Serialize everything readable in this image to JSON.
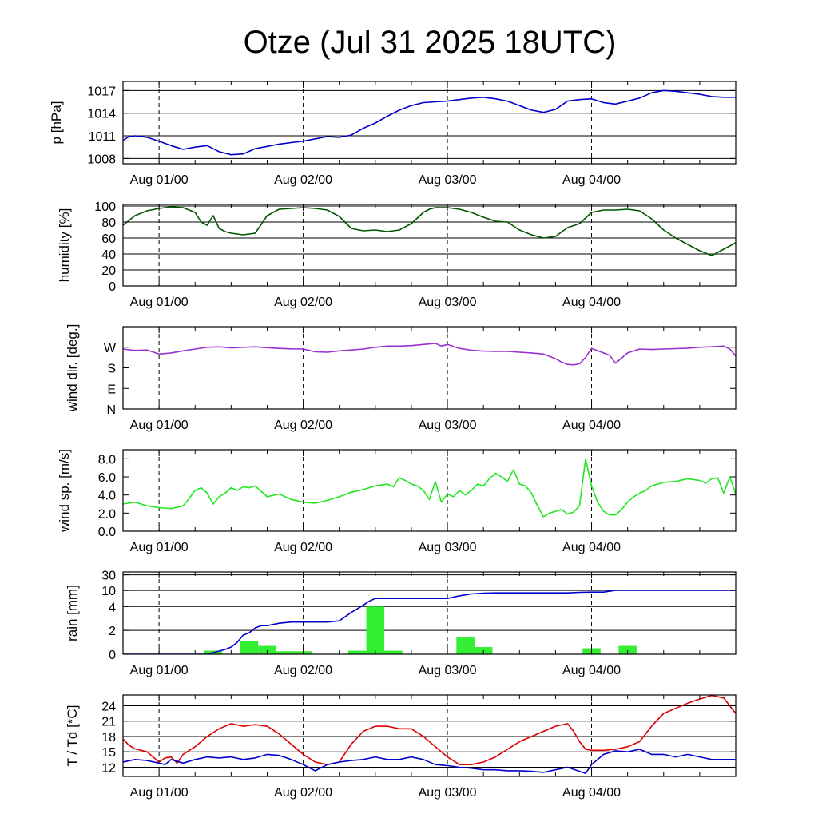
{
  "title": "Otze (Jul 31 2025 18UTC)",
  "colors": {
    "pressure": "#0000cc",
    "humidity": "#005500",
    "wind_dir": "#9a30cf",
    "wind_speed": "#22e822",
    "rain_bar": "#33ee33",
    "rain_total": "#0000cc",
    "temperature": "#dd0000",
    "dewpoint": "#0000cc",
    "grid": "#000000"
  },
  "chart_data": [
    {
      "type": "line",
      "ylabel": "p [hPa]",
      "x_range": [
        -6,
        96
      ],
      "x_tick_labels": [
        "Aug 01/00",
        "Aug 02/00",
        "Aug 03/00",
        "Aug 04/00"
      ],
      "x_tick_hours": [
        0,
        24,
        48,
        72
      ],
      "ylim": [
        1007.3,
        1018.2
      ],
      "y_ticks": [
        1008,
        1011,
        1014,
        1017
      ],
      "y_tick_labels": [
        "1008",
        "1011",
        "1014",
        "1017"
      ],
      "grid": true,
      "series": [
        {
          "color_key": "pressure",
          "x": [
            -6,
            -5,
            -4,
            -2,
            0,
            2,
            4,
            6,
            8,
            10,
            12,
            14,
            16,
            18,
            20,
            22,
            24,
            26,
            28,
            30,
            32,
            34,
            36,
            38,
            40,
            42,
            44,
            46,
            48,
            50,
            52,
            54,
            56,
            58,
            60,
            62,
            64,
            66,
            68,
            70,
            72,
            74,
            76,
            78,
            80,
            82,
            84,
            86,
            88,
            90,
            92,
            94,
            96
          ],
          "y": [
            1010.4,
            1010.9,
            1011.0,
            1010.8,
            1010.3,
            1009.7,
            1009.2,
            1009.5,
            1009.7,
            1008.9,
            1008.5,
            1008.6,
            1009.3,
            1009.6,
            1009.9,
            1010.1,
            1010.3,
            1010.6,
            1010.9,
            1010.8,
            1011.1,
            1012.0,
            1012.7,
            1013.6,
            1014.4,
            1015.0,
            1015.4,
            1015.5,
            1015.6,
            1015.8,
            1016.0,
            1016.1,
            1015.9,
            1015.6,
            1015.0,
            1014.4,
            1014.1,
            1014.5,
            1015.6,
            1015.8,
            1015.9,
            1015.4,
            1015.2,
            1015.6,
            1016.0,
            1016.7,
            1017.0,
            1016.9,
            1016.7,
            1016.5,
            1016.2,
            1016.1,
            1016.1
          ]
        }
      ]
    },
    {
      "type": "line",
      "ylabel": "humidity [%]",
      "x_range": [
        -6,
        96
      ],
      "x_tick_labels": [
        "Aug 01/00",
        "Aug 02/00",
        "Aug 03/00",
        "Aug 04/00"
      ],
      "x_tick_hours": [
        0,
        24,
        48,
        72
      ],
      "ylim": [
        0,
        102
      ],
      "y_ticks": [
        0,
        20,
        40,
        60,
        80,
        100
      ],
      "y_tick_labels": [
        "0",
        "20",
        "40",
        "60",
        "80",
        "100"
      ],
      "grid": true,
      "series": [
        {
          "color_key": "humidity",
          "x": [
            -6,
            -4,
            -2,
            0,
            2,
            4,
            6,
            7,
            8,
            9,
            10,
            11,
            12,
            14,
            16,
            18,
            20,
            22,
            24,
            26,
            28,
            30,
            32,
            34,
            36,
            38,
            40,
            42,
            44,
            45,
            46,
            48,
            50,
            52,
            54,
            56,
            58,
            60,
            62,
            64,
            66,
            68,
            70,
            72,
            74,
            76,
            78,
            80,
            82,
            84,
            86,
            88,
            90,
            92,
            94,
            96
          ],
          "y": [
            76,
            88,
            94,
            97,
            99,
            98,
            92,
            80,
            76,
            88,
            72,
            68,
            66,
            64,
            66,
            88,
            96,
            97,
            98,
            97,
            95,
            87,
            72,
            69,
            70,
            68,
            70,
            78,
            92,
            96,
            98,
            98,
            96,
            92,
            86,
            81,
            80,
            70,
            64,
            60,
            62,
            73,
            78,
            92,
            95,
            95,
            96,
            94,
            84,
            70,
            60,
            52,
            44,
            38,
            46,
            54
          ]
        }
      ]
    },
    {
      "type": "line",
      "ylabel": "wind dir. [deg.]",
      "x_range": [
        -6,
        96
      ],
      "x_tick_labels": [
        "Aug 01/00",
        "Aug 02/00",
        "Aug 03/00",
        "Aug 04/00"
      ],
      "x_tick_hours": [
        0,
        24,
        48,
        72
      ],
      "ylim": [
        0,
        360
      ],
      "y_ticks": [
        0,
        90,
        180,
        270
      ],
      "y_tick_labels": [
        "N",
        "E",
        "S",
        "W"
      ],
      "grid": false,
      "series": [
        {
          "color_key": "wind_dir",
          "x": [
            -6,
            -4,
            -2,
            0,
            2,
            4,
            6,
            8,
            10,
            12,
            14,
            16,
            18,
            20,
            22,
            24,
            26,
            28,
            30,
            32,
            34,
            36,
            38,
            40,
            42,
            44,
            46,
            47,
            48,
            50,
            52,
            54,
            56,
            58,
            60,
            62,
            64,
            66,
            67,
            68,
            69,
            70,
            71,
            72,
            74,
            75,
            76,
            78,
            80,
            82,
            84,
            86,
            88,
            90,
            92,
            94,
            95,
            96
          ],
          "y": [
            262,
            256,
            258,
            240,
            245,
            254,
            262,
            270,
            272,
            267,
            270,
            272,
            268,
            265,
            263,
            262,
            250,
            248,
            254,
            258,
            262,
            270,
            275,
            275,
            277,
            282,
            287,
            275,
            282,
            265,
            257,
            253,
            252,
            252,
            248,
            245,
            240,
            220,
            205,
            195,
            193,
            198,
            225,
            265,
            245,
            235,
            200,
            245,
            262,
            260,
            262,
            264,
            266,
            270,
            272,
            275,
            262,
            232
          ]
        }
      ]
    },
    {
      "type": "line",
      "ylabel": "wind sp. [m/s]",
      "x_range": [
        -6,
        96
      ],
      "x_tick_labels": [
        "Aug 01/00",
        "Aug 02/00",
        "Aug 03/00",
        "Aug 04/00"
      ],
      "x_tick_hours": [
        0,
        24,
        48,
        72
      ],
      "ylim": [
        0,
        9
      ],
      "y_ticks": [
        0,
        2,
        4,
        6,
        8
      ],
      "y_tick_labels": [
        "0.0",
        "2.0",
        "4.0",
        "6.0",
        "8.0"
      ],
      "grid": false,
      "series": [
        {
          "color_key": "wind_speed",
          "x": [
            -6,
            -4,
            -2,
            0,
            2,
            4,
            5,
            6,
            7,
            8,
            9,
            10,
            11,
            12,
            13,
            14,
            15,
            16,
            18,
            20,
            22,
            24,
            26,
            28,
            30,
            32,
            34,
            36,
            38,
            39,
            40,
            41,
            42,
            43,
            44,
            45,
            46,
            47,
            48,
            49,
            50,
            51,
            52,
            53,
            54,
            55,
            56,
            57,
            58,
            59,
            60,
            61,
            62,
            63,
            64,
            65,
            66,
            67,
            68,
            69,
            70,
            71,
            72,
            73,
            74,
            75,
            76,
            77,
            78,
            79,
            80,
            81,
            82,
            84,
            86,
            88,
            89,
            90,
            91,
            92,
            93,
            94,
            95,
            96
          ],
          "y": [
            3.0,
            3.2,
            2.8,
            2.6,
            2.5,
            2.8,
            3.6,
            4.5,
            4.8,
            4.2,
            3.0,
            3.8,
            4.2,
            4.8,
            4.5,
            4.9,
            4.8,
            5.0,
            3.8,
            4.1,
            3.5,
            3.2,
            3.1,
            3.4,
            3.8,
            4.3,
            4.6,
            5.0,
            5.2,
            4.9,
            5.9,
            5.6,
            5.2,
            5.0,
            4.5,
            3.5,
            5.5,
            3.2,
            4.1,
            3.8,
            4.5,
            4.0,
            4.5,
            5.2,
            5.0,
            5.8,
            6.4,
            6.0,
            5.5,
            6.8,
            5.2,
            5.0,
            4.2,
            2.8,
            1.6,
            2.0,
            2.2,
            2.4,
            1.9,
            2.1,
            2.8,
            8.0,
            5.0,
            3.2,
            2.2,
            1.8,
            1.8,
            2.4,
            3.2,
            3.8,
            4.2,
            4.5,
            5.0,
            5.4,
            5.5,
            5.8,
            5.7,
            5.6,
            5.3,
            5.8,
            5.9,
            4.2,
            6.0,
            4.1
          ]
        }
      ]
    },
    {
      "type": "bar",
      "ylabel": "rain [mm]",
      "x_range": [
        -6,
        96
      ],
      "x_tick_labels": [
        "Aug 01/00",
        "Aug 02/00",
        "Aug 03/00",
        "Aug 04/00"
      ],
      "x_tick_hours": [
        0,
        24,
        48,
        72
      ],
      "y_scale": "nonlinear",
      "y_ticks": [
        0,
        2,
        4,
        10,
        30
      ],
      "y_tick_labels": [
        "0",
        "2",
        "4",
        "10",
        "30"
      ],
      "grid": true,
      "bars": {
        "color_key": "rain_bar",
        "start_hour": [
          7.5,
          13.5,
          16.5,
          19.5,
          22.5,
          31.5,
          34.5,
          37.5,
          49.5,
          52.5,
          70.5,
          76.5
        ],
        "end_hour": [
          10.5,
          16.5,
          19.5,
          22.5,
          25.5,
          34.5,
          37.5,
          40.5,
          52.5,
          55.5,
          73.5,
          79.5
        ],
        "values": [
          0.3,
          1.1,
          0.7,
          0.25,
          0.25,
          0.3,
          4.0,
          0.3,
          1.4,
          0.6,
          0.5,
          0.7
        ]
      },
      "series": [
        {
          "name_key": "accumulated",
          "color_key": "rain_total",
          "x": [
            -6,
            8,
            11,
            12,
            13,
            14,
            15,
            16,
            17,
            18,
            20,
            22,
            24,
            26,
            28,
            30,
            32,
            34,
            35,
            36,
            38,
            40,
            42,
            44,
            46,
            48,
            50,
            52,
            54,
            56,
            58,
            60,
            62,
            64,
            66,
            68,
            70,
            72,
            74,
            76,
            78,
            80,
            84,
            88,
            92,
            96
          ],
          "y": [
            0,
            0,
            0.4,
            0.6,
            1.0,
            1.6,
            1.8,
            2.2,
            2.4,
            2.4,
            2.6,
            2.7,
            2.7,
            2.7,
            2.7,
            2.8,
            3.5,
            4.5,
            6.0,
            7.0,
            7.0,
            7.0,
            7.0,
            7.0,
            7.0,
            7.0,
            8.0,
            8.7,
            9.0,
            9.1,
            9.1,
            9.1,
            9.1,
            9.1,
            9.1,
            9.1,
            9.3,
            9.4,
            9.4,
            10.2,
            10.3,
            10.3,
            10.3,
            10.3,
            10.3,
            10.3
          ]
        }
      ]
    },
    {
      "type": "line",
      "ylabel": "T / Td [*C]",
      "x_range": [
        -6,
        96
      ],
      "x_tick_labels": [
        "Aug 01/00",
        "Aug 02/00",
        "Aug 03/00",
        "Aug 04/00"
      ],
      "x_tick_hours": [
        0,
        24,
        48,
        72
      ],
      "ylim": [
        10.2,
        26.1
      ],
      "y_ticks": [
        12,
        15,
        18,
        21,
        24
      ],
      "y_tick_labels": [
        "12",
        "15",
        "18",
        "21",
        "24"
      ],
      "grid": true,
      "series": [
        {
          "name_key": "T",
          "color_key": "temperature",
          "x": [
            -6,
            -5,
            -4,
            -2,
            0,
            1,
            2,
            3,
            4,
            6,
            8,
            10,
            12,
            14,
            16,
            18,
            20,
            22,
            24,
            26,
            28,
            30,
            32,
            34,
            36,
            38,
            40,
            42,
            44,
            46,
            48,
            50,
            52,
            54,
            56,
            58,
            60,
            62,
            64,
            66,
            68,
            69,
            70,
            71,
            72,
            74,
            76,
            78,
            80,
            82,
            84,
            86,
            88,
            90,
            92,
            94,
            95,
            96
          ],
          "y": [
            17.5,
            16.3,
            15.6,
            15.0,
            13.0,
            13.8,
            14.0,
            12.8,
            14.5,
            16.0,
            18.0,
            19.5,
            20.5,
            20.0,
            20.3,
            20.0,
            18.5,
            16.5,
            14.5,
            13.0,
            12.5,
            13.0,
            16.5,
            19.0,
            20.0,
            20.0,
            19.5,
            19.5,
            18.0,
            16.0,
            14.0,
            12.5,
            12.5,
            13.0,
            14.0,
            15.5,
            17.0,
            18.0,
            19.0,
            20.0,
            20.5,
            19.0,
            17.0,
            15.5,
            15.3,
            15.3,
            15.5,
            16.0,
            17.0,
            20.0,
            22.5,
            23.5,
            24.5,
            25.3,
            26.0,
            25.5,
            24.0,
            22.5
          ]
        },
        {
          "name_key": "Td",
          "color_key": "dewpoint",
          "x": [
            -6,
            -4,
            -2,
            0,
            1,
            2,
            4,
            6,
            8,
            10,
            12,
            14,
            16,
            18,
            20,
            22,
            24,
            26,
            28,
            30,
            32,
            34,
            36,
            38,
            40,
            42,
            44,
            46,
            48,
            50,
            52,
            54,
            56,
            58,
            60,
            62,
            64,
            66,
            68,
            70,
            71,
            72,
            74,
            76,
            78,
            80,
            82,
            84,
            86,
            88,
            90,
            92,
            94,
            96
          ],
          "y": [
            13.0,
            13.5,
            13.3,
            12.8,
            12.5,
            13.5,
            12.8,
            13.5,
            14.0,
            13.8,
            14.0,
            13.5,
            13.8,
            14.5,
            14.3,
            13.5,
            12.5,
            11.3,
            12.5,
            13.0,
            13.3,
            13.5,
            14.0,
            13.5,
            13.5,
            14.0,
            13.5,
            12.5,
            12.3,
            12.0,
            11.8,
            11.5,
            11.5,
            11.3,
            11.3,
            11.2,
            11.0,
            11.5,
            12.0,
            11.2,
            10.8,
            12.5,
            14.5,
            15.2,
            15.0,
            15.5,
            14.5,
            14.5,
            14.0,
            14.5,
            14.0,
            13.5,
            13.5,
            13.5
          ]
        }
      ]
    }
  ]
}
